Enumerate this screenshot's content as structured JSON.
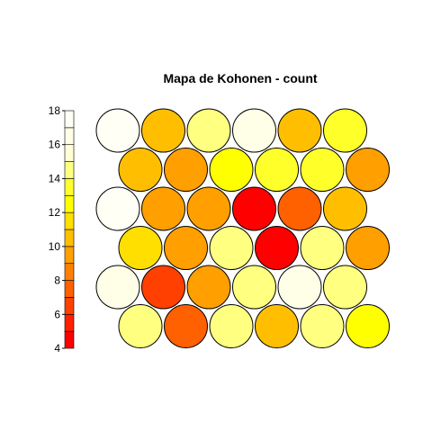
{
  "chart_data": {
    "type": "heatmap",
    "title": "Mapa de Kohonen - count",
    "grid": {
      "rows": 6,
      "cols": 6,
      "topology": "hexagonal"
    },
    "legend": {
      "placement": "left",
      "range": [
        4,
        18
      ],
      "ticks": [
        "4",
        "6",
        "8",
        "10",
        "12",
        "14",
        "16",
        "18"
      ],
      "bins": 14,
      "colors": [
        "#ff0000",
        "#ff2000",
        "#ff4000",
        "#ff6000",
        "#ff8000",
        "#ff9f00",
        "#ffbf00",
        "#ffdf00",
        "#ffff00",
        "#ffff2a",
        "#ffff80",
        "#ffffd5",
        "#ffffe8",
        "#fffff5"
      ]
    },
    "values": [
      [
        17,
        10,
        14,
        16,
        10,
        13
      ],
      [
        10,
        9,
        12,
        13,
        13,
        9
      ],
      [
        17,
        9,
        9,
        4,
        7,
        10
      ],
      [
        11,
        9,
        14,
        4,
        14,
        9
      ],
      [
        16,
        6,
        9,
        14,
        16,
        14
      ],
      [
        14,
        7,
        14,
        10,
        14,
        12
      ]
    ]
  }
}
